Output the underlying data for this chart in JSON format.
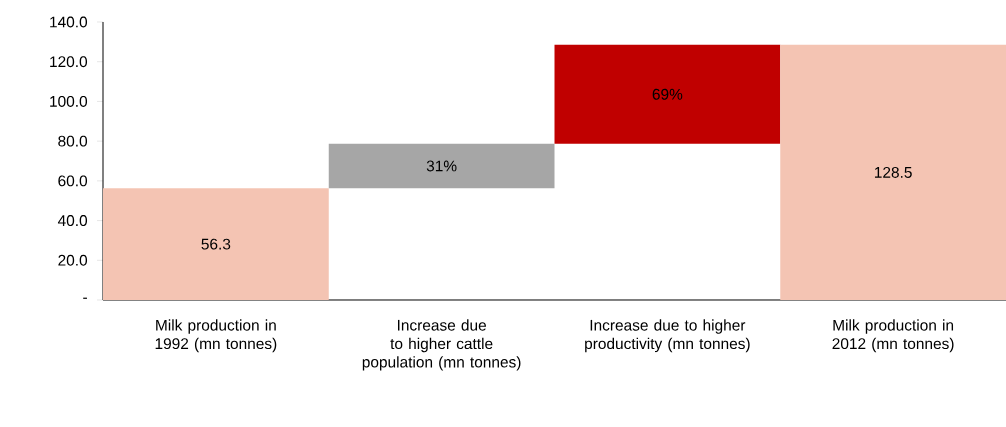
{
  "chart_data": {
    "type": "bar",
    "categories": [
      "Milk production in 1992 (mn tonnes)",
      "Increase due to higher cattle population (mn tonnes)",
      "Increase due to higher productivity (mn tonnes)",
      "Milk production in 2012 (mn tonnes)"
    ],
    "values": [
      56.3,
      22.4,
      49.8,
      128.5
    ],
    "base": [
      0,
      56.3,
      78.7,
      0
    ],
    "colors": [
      "#f4c4b3",
      "#a6a6a6",
      "#c00000",
      "#f4c4b3"
    ],
    "value_labels": [
      "56.3",
      null,
      null,
      "128.5"
    ],
    "annotations": [
      "31%",
      "69%"
    ],
    "ylim": [
      0,
      140
    ],
    "yticks": [
      {
        "value": 0,
        "label": "-"
      },
      {
        "value": 20,
        "label": "20.0"
      },
      {
        "value": 40,
        "label": "40.0"
      },
      {
        "value": 60,
        "label": "60.0"
      },
      {
        "value": 80,
        "label": "80.0"
      },
      {
        "value": 100,
        "label": "100.0"
      },
      {
        "value": 120,
        "label": "120.0"
      },
      {
        "value": 140,
        "label": "140.0"
      }
    ],
    "grid": false
  }
}
